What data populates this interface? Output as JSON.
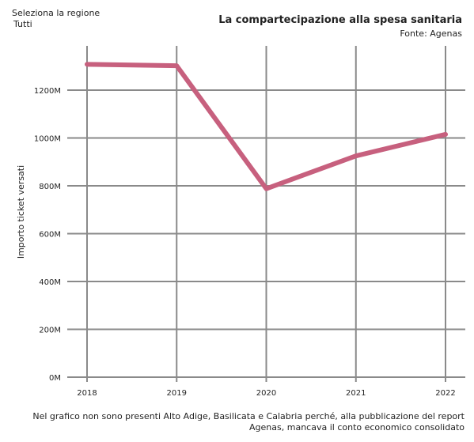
{
  "filter": {
    "label": "Seleziona la regione",
    "value": "Tutti"
  },
  "header": {
    "title": "La compartecipazione alla spesa sanitaria",
    "source": "Fonte: Agenas"
  },
  "footnote": "Nel grafico non sono presenti Alto Adige, Basilicata e Calabria perché, alla pubblicazione del report Agenas, mancava il conto economico consolidato",
  "chart_data": {
    "type": "line",
    "title": "",
    "xlabel": "",
    "ylabel": "Importo ticket versati",
    "x": [
      "2018",
      "2019",
      "2020",
      "2021",
      "2022"
    ],
    "series": [
      {
        "values": [
          1308000000,
          1302000000,
          788000000,
          925000000,
          1015000000
        ],
        "color": "#c7607e"
      }
    ],
    "ylim": [
      0,
      1400000000
    ],
    "yticks": [
      0,
      200000000,
      400000000,
      600000000,
      800000000,
      1000000000,
      1200000000
    ],
    "ytick_labels": [
      "0M",
      "200M",
      "400M",
      "600M",
      "800M",
      "1000M",
      "1200M"
    ],
    "grid": true,
    "legend": "none"
  }
}
